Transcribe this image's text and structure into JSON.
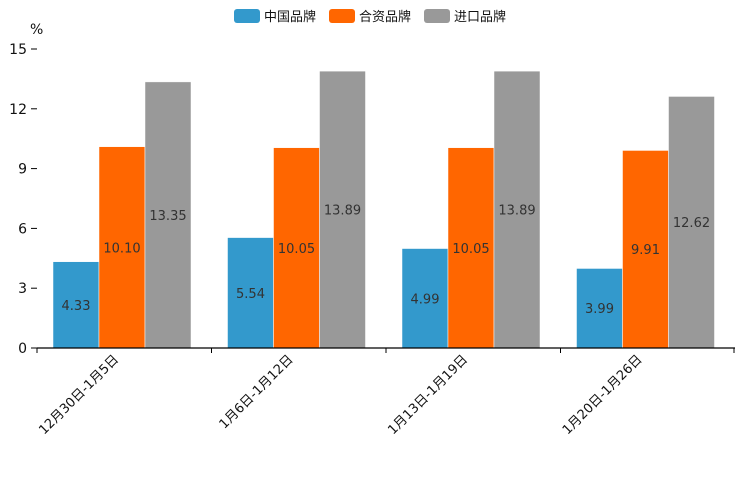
{
  "chart_data": {
    "type": "bar",
    "title": "",
    "ylabel": "%",
    "xlabel": "",
    "ylim": [
      0,
      15
    ],
    "yticks": [
      0,
      3,
      6,
      9,
      12,
      15
    ],
    "grid": false,
    "legend_position": "top-center",
    "categories": [
      "12月30日-1月5日",
      "1月6日-1月12日",
      "1月13日-1月19日",
      "1月20日-1月26日"
    ],
    "series": [
      {
        "name": "中国品牌",
        "color": "#3399cc",
        "values": [
          4.33,
          5.54,
          4.99,
          3.99
        ]
      },
      {
        "name": "合资品牌",
        "color": "#ff6600",
        "values": [
          10.1,
          10.05,
          10.05,
          9.91
        ]
      },
      {
        "name": "进口品牌",
        "color": "#999999",
        "values": [
          13.35,
          13.89,
          13.89,
          12.62
        ]
      }
    ]
  }
}
